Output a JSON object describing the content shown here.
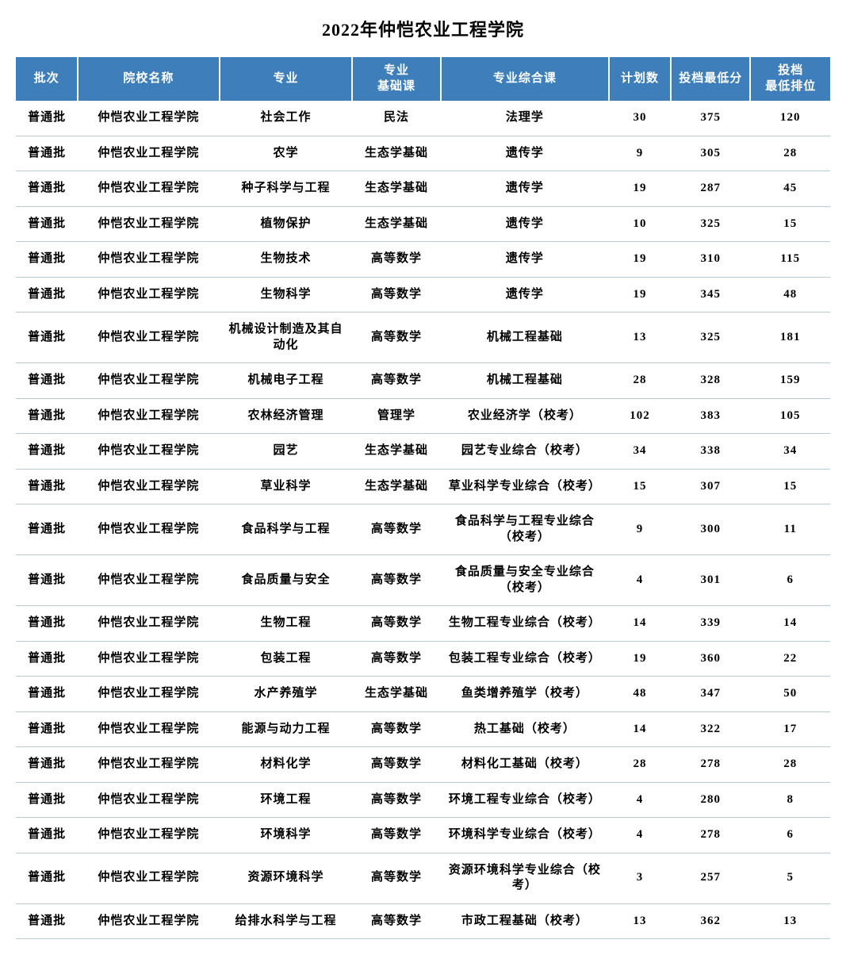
{
  "title": "2022年仲恺农业工程学院",
  "header_bg": "#3d7ebb",
  "header_fg": "#ffffff",
  "row_border": "#b8c9d8",
  "columns": [
    "批次",
    "院校名称",
    "专业",
    "专业\n基础课",
    "专业综合课",
    "计划数",
    "投档最低分",
    "投档\n最低排位"
  ],
  "rows": [
    [
      "普通批",
      "仲恺农业工程学院",
      "社会工作",
      "民法",
      "法理学",
      "30",
      "375",
      "120"
    ],
    [
      "普通批",
      "仲恺农业工程学院",
      "农学",
      "生态学基础",
      "遗传学",
      "9",
      "305",
      "28"
    ],
    [
      "普通批",
      "仲恺农业工程学院",
      "种子科学与工程",
      "生态学基础",
      "遗传学",
      "19",
      "287",
      "45"
    ],
    [
      "普通批",
      "仲恺农业工程学院",
      "植物保护",
      "生态学基础",
      "遗传学",
      "10",
      "325",
      "15"
    ],
    [
      "普通批",
      "仲恺农业工程学院",
      "生物技术",
      "高等数学",
      "遗传学",
      "19",
      "310",
      "115"
    ],
    [
      "普通批",
      "仲恺农业工程学院",
      "生物科学",
      "高等数学",
      "遗传学",
      "19",
      "345",
      "48"
    ],
    [
      "普通批",
      "仲恺农业工程学院",
      "机械设计制造及其自动化",
      "高等数学",
      "机械工程基础",
      "13",
      "325",
      "181"
    ],
    [
      "普通批",
      "仲恺农业工程学院",
      "机械电子工程",
      "高等数学",
      "机械工程基础",
      "28",
      "328",
      "159"
    ],
    [
      "普通批",
      "仲恺农业工程学院",
      "农林经济管理",
      "管理学",
      "农业经济学（校考）",
      "102",
      "383",
      "105"
    ],
    [
      "普通批",
      "仲恺农业工程学院",
      "园艺",
      "生态学基础",
      "园艺专业综合（校考）",
      "34",
      "338",
      "34"
    ],
    [
      "普通批",
      "仲恺农业工程学院",
      "草业科学",
      "生态学基础",
      "草业科学专业综合（校考）",
      "15",
      "307",
      "15"
    ],
    [
      "普通批",
      "仲恺农业工程学院",
      "食品科学与工程",
      "高等数学",
      "食品科学与工程专业综合（校考）",
      "9",
      "300",
      "11"
    ],
    [
      "普通批",
      "仲恺农业工程学院",
      "食品质量与安全",
      "高等数学",
      "食品质量与安全专业综合（校考）",
      "4",
      "301",
      "6"
    ],
    [
      "普通批",
      "仲恺农业工程学院",
      "生物工程",
      "高等数学",
      "生物工程专业综合（校考）",
      "14",
      "339",
      "14"
    ],
    [
      "普通批",
      "仲恺农业工程学院",
      "包装工程",
      "高等数学",
      "包装工程专业综合（校考）",
      "19",
      "360",
      "22"
    ],
    [
      "普通批",
      "仲恺农业工程学院",
      "水产养殖学",
      "生态学基础",
      "鱼类增养殖学（校考）",
      "48",
      "347",
      "50"
    ],
    [
      "普通批",
      "仲恺农业工程学院",
      "能源与动力工程",
      "高等数学",
      "热工基础（校考）",
      "14",
      "322",
      "17"
    ],
    [
      "普通批",
      "仲恺农业工程学院",
      "材料化学",
      "高等数学",
      "材料化工基础（校考）",
      "28",
      "278",
      "28"
    ],
    [
      "普通批",
      "仲恺农业工程学院",
      "环境工程",
      "高等数学",
      "环境工程专业综合（校考）",
      "4",
      "280",
      "8"
    ],
    [
      "普通批",
      "仲恺农业工程学院",
      "环境科学",
      "高等数学",
      "环境科学专业综合（校考）",
      "4",
      "278",
      "6"
    ],
    [
      "普通批",
      "仲恺农业工程学院",
      "资源环境科学",
      "高等数学",
      "资源环境科学专业综合（校考）",
      "3",
      "257",
      "5"
    ],
    [
      "普通批",
      "仲恺农业工程学院",
      "给排水科学与工程",
      "高等数学",
      "市政工程基础（校考）",
      "13",
      "362",
      "13"
    ]
  ]
}
